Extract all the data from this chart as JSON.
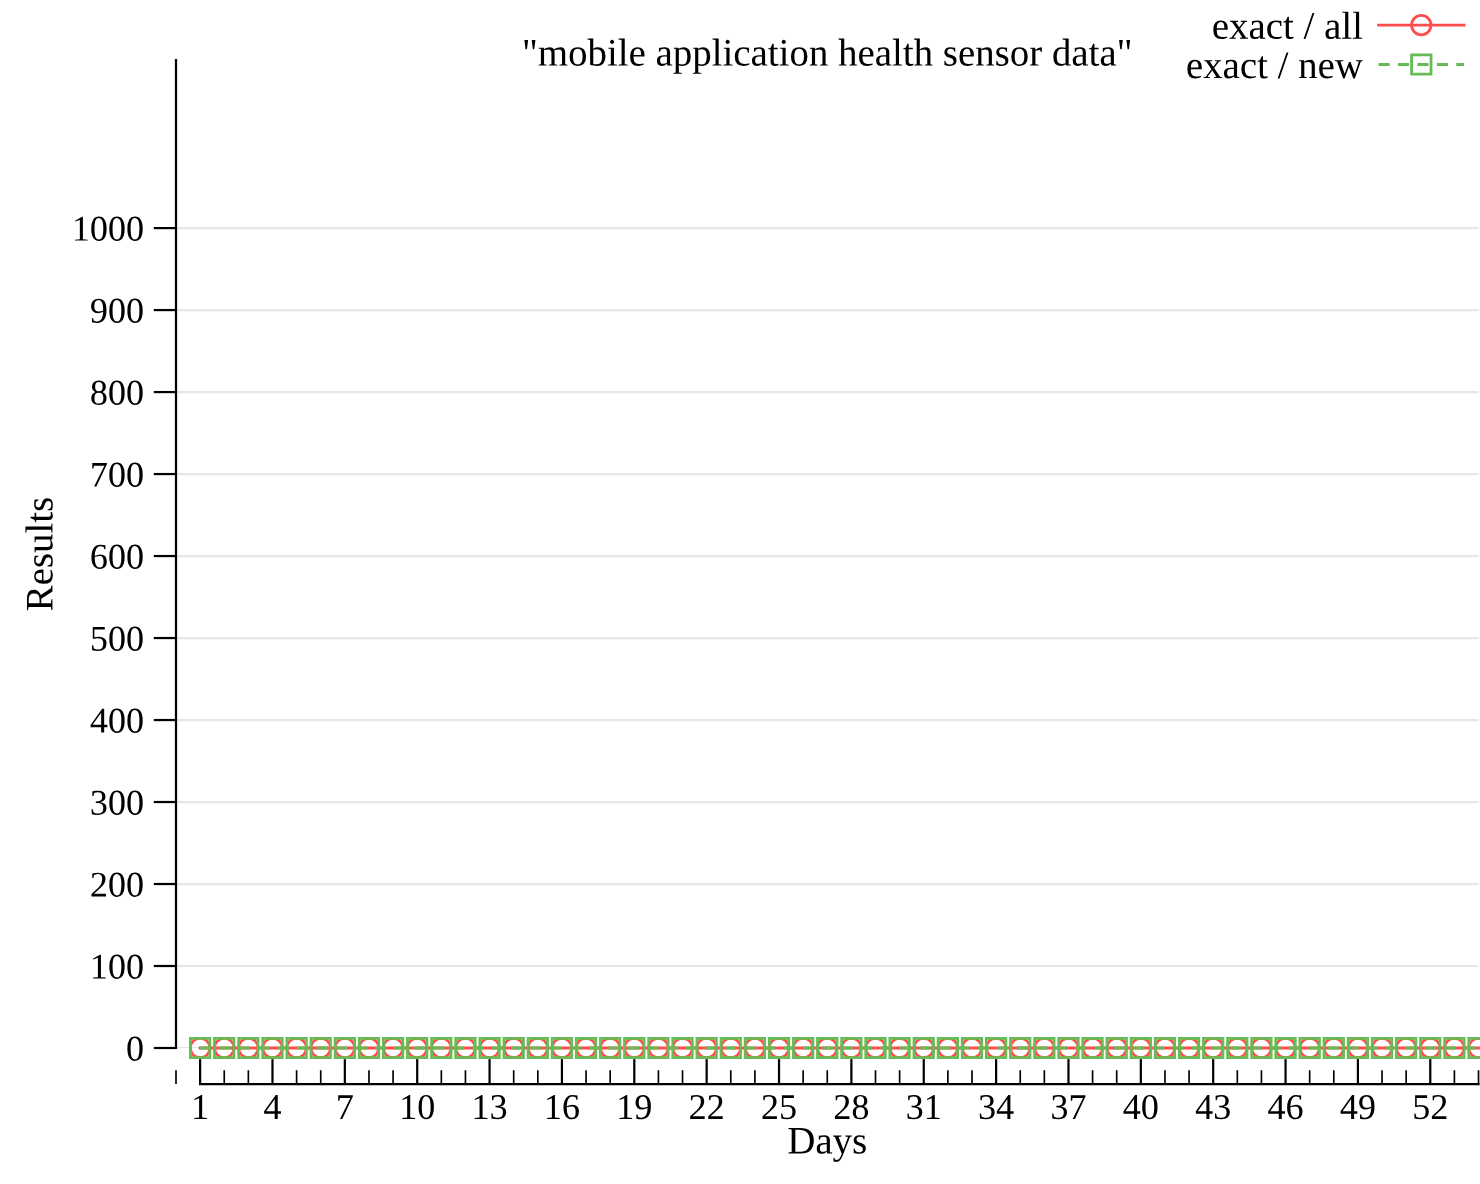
{
  "chart_data": {
    "type": "line",
    "title": "\"mobile application health sensor data\"",
    "xlabel": "Days",
    "ylabel": "Results",
    "x": [
      1,
      2,
      3,
      4,
      5,
      6,
      7,
      8,
      9,
      10,
      11,
      12,
      13,
      14,
      15,
      16,
      17,
      18,
      19,
      20,
      21,
      22,
      23,
      24,
      25,
      26,
      27,
      28,
      29,
      30,
      31,
      32,
      33,
      34,
      35,
      36,
      37,
      38,
      39,
      40,
      41,
      42,
      43,
      44,
      45,
      46,
      47,
      48,
      49,
      50,
      51,
      52,
      53,
      54
    ],
    "series": [
      {
        "name": "exact / all",
        "color": "#ff4d4d",
        "marker": "circle",
        "line_style": "solid",
        "values": [
          0,
          0,
          0,
          0,
          0,
          0,
          0,
          0,
          0,
          0,
          0,
          0,
          0,
          0,
          0,
          0,
          0,
          0,
          0,
          0,
          0,
          0,
          0,
          0,
          0,
          0,
          0,
          0,
          0,
          0,
          0,
          0,
          0,
          0,
          0,
          0,
          0,
          0,
          0,
          0,
          0,
          0,
          0,
          0,
          0,
          0,
          0,
          0,
          0,
          0,
          0,
          0,
          0,
          0
        ]
      },
      {
        "name": "exact / new",
        "color": "#66bb55",
        "marker": "square",
        "line_style": "dashed",
        "values": [
          0,
          0,
          0,
          0,
          0,
          0,
          0,
          0,
          0,
          0,
          0,
          0,
          0,
          0,
          0,
          0,
          0,
          0,
          0,
          0,
          0,
          0,
          0,
          0,
          0,
          0,
          0,
          0,
          0,
          0,
          0,
          0,
          0,
          0,
          0,
          0,
          0,
          0,
          0,
          0,
          0,
          0,
          0,
          0,
          0,
          0,
          0,
          0,
          0,
          0,
          0,
          0,
          0,
          0
        ]
      }
    ],
    "xlim": [
      0,
      54
    ],
    "xticks": [
      1,
      4,
      7,
      10,
      13,
      16,
      19,
      22,
      25,
      28,
      31,
      34,
      37,
      40,
      43,
      46,
      49,
      52
    ],
    "ylim": [
      0,
      1205
    ],
    "yticks": [
      0,
      100,
      200,
      300,
      400,
      500,
      600,
      700,
      800,
      900,
      1000
    ],
    "grid": "y",
    "legend": "top right"
  }
}
